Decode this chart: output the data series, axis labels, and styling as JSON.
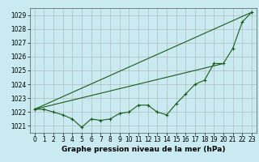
{
  "xlabel": "Graphe pression niveau de la mer (hPa)",
  "ylim": [
    1020.5,
    1029.5
  ],
  "xlim": [
    -0.5,
    23.5
  ],
  "yticks": [
    1021,
    1022,
    1023,
    1024,
    1025,
    1026,
    1027,
    1028,
    1029
  ],
  "xticks": [
    0,
    1,
    2,
    3,
    4,
    5,
    6,
    7,
    8,
    9,
    10,
    11,
    12,
    13,
    14,
    15,
    16,
    17,
    18,
    19,
    20,
    21,
    22,
    23
  ],
  "bg_color": "#c8eaf0",
  "grid_color": "#b0b0b0",
  "line_color": "#1a5c1a",
  "line1_x": [
    0,
    23
  ],
  "line1_y": [
    1022.2,
    1029.2
  ],
  "line2_x": [
    0,
    20
  ],
  "line2_y": [
    1022.2,
    1025.5
  ],
  "data_x": [
    0,
    1,
    2,
    3,
    4,
    5,
    6,
    7,
    8,
    9,
    10,
    11,
    12,
    13,
    14,
    15,
    16,
    17,
    18,
    19,
    20,
    21,
    22,
    23
  ],
  "data_y": [
    1022.2,
    1022.2,
    1022.0,
    1021.8,
    1021.5,
    1020.9,
    1021.5,
    1021.4,
    1021.5,
    1021.9,
    1022.0,
    1022.5,
    1022.5,
    1022.0,
    1021.8,
    1022.6,
    1023.3,
    1024.0,
    1024.3,
    1025.5,
    1025.5,
    1026.6,
    1028.5,
    1029.2
  ],
  "xlabel_fontsize": 6.5,
  "tick_fontsize": 5.5
}
